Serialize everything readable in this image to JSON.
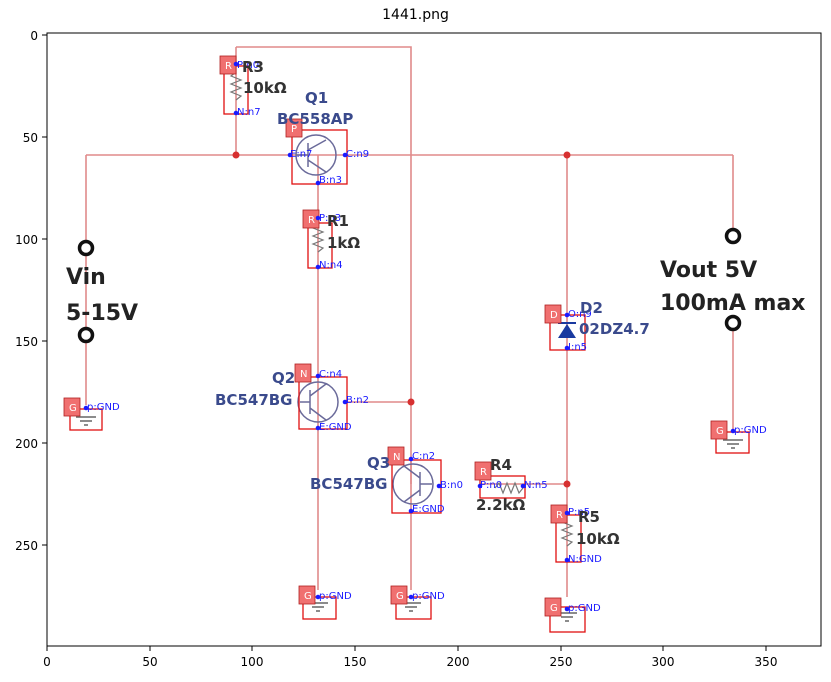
{
  "title": "1441.png",
  "axes": {
    "x_ticks": [
      "0",
      "50",
      "100",
      "150",
      "200",
      "250",
      "300",
      "350"
    ],
    "y_ticks": [
      "0",
      "50",
      "100",
      "150",
      "200",
      "250"
    ]
  },
  "schematic": {
    "vin_label": "Vin",
    "vin_range": "5-15V",
    "vout_label": "Vout 5V",
    "vout_current": "100mA max",
    "r3_name": "R3",
    "r3_value": "10kΩ",
    "q1_name": "Q1",
    "q1_part": "BC558AP",
    "r1_name": "R1",
    "r1_value": "1kΩ",
    "q2_name": "Q2",
    "q2_part": "BC547BG",
    "q3_name": "Q3",
    "q3_part": "BC547BG",
    "r4_name": "R4",
    "r4_value": "2.2kΩ",
    "d2_name": "D2",
    "d2_part": "02DZ4.7",
    "r5_name": "R5",
    "r5_value": "10kΩ"
  },
  "annotations": {
    "pins": [
      "P:n0",
      "N:n7",
      "E:n7",
      "C:n9",
      "B:n3",
      "P:n3",
      "N:n4",
      "C:n4",
      "B:n2",
      "E:GND",
      "C:n2",
      "B:n0",
      "E:GND",
      "P:n0",
      "N:n5",
      "O:n9",
      "I:n5",
      "P:n5",
      "N:GND",
      "p:GND",
      "p:GND",
      "p:GND",
      "p:GND",
      "p:GND",
      "p:GND"
    ],
    "tags": [
      "R",
      "P",
      "R",
      "N",
      "N",
      "R",
      "D",
      "R",
      "G",
      "G",
      "G",
      "G",
      "G"
    ]
  }
}
